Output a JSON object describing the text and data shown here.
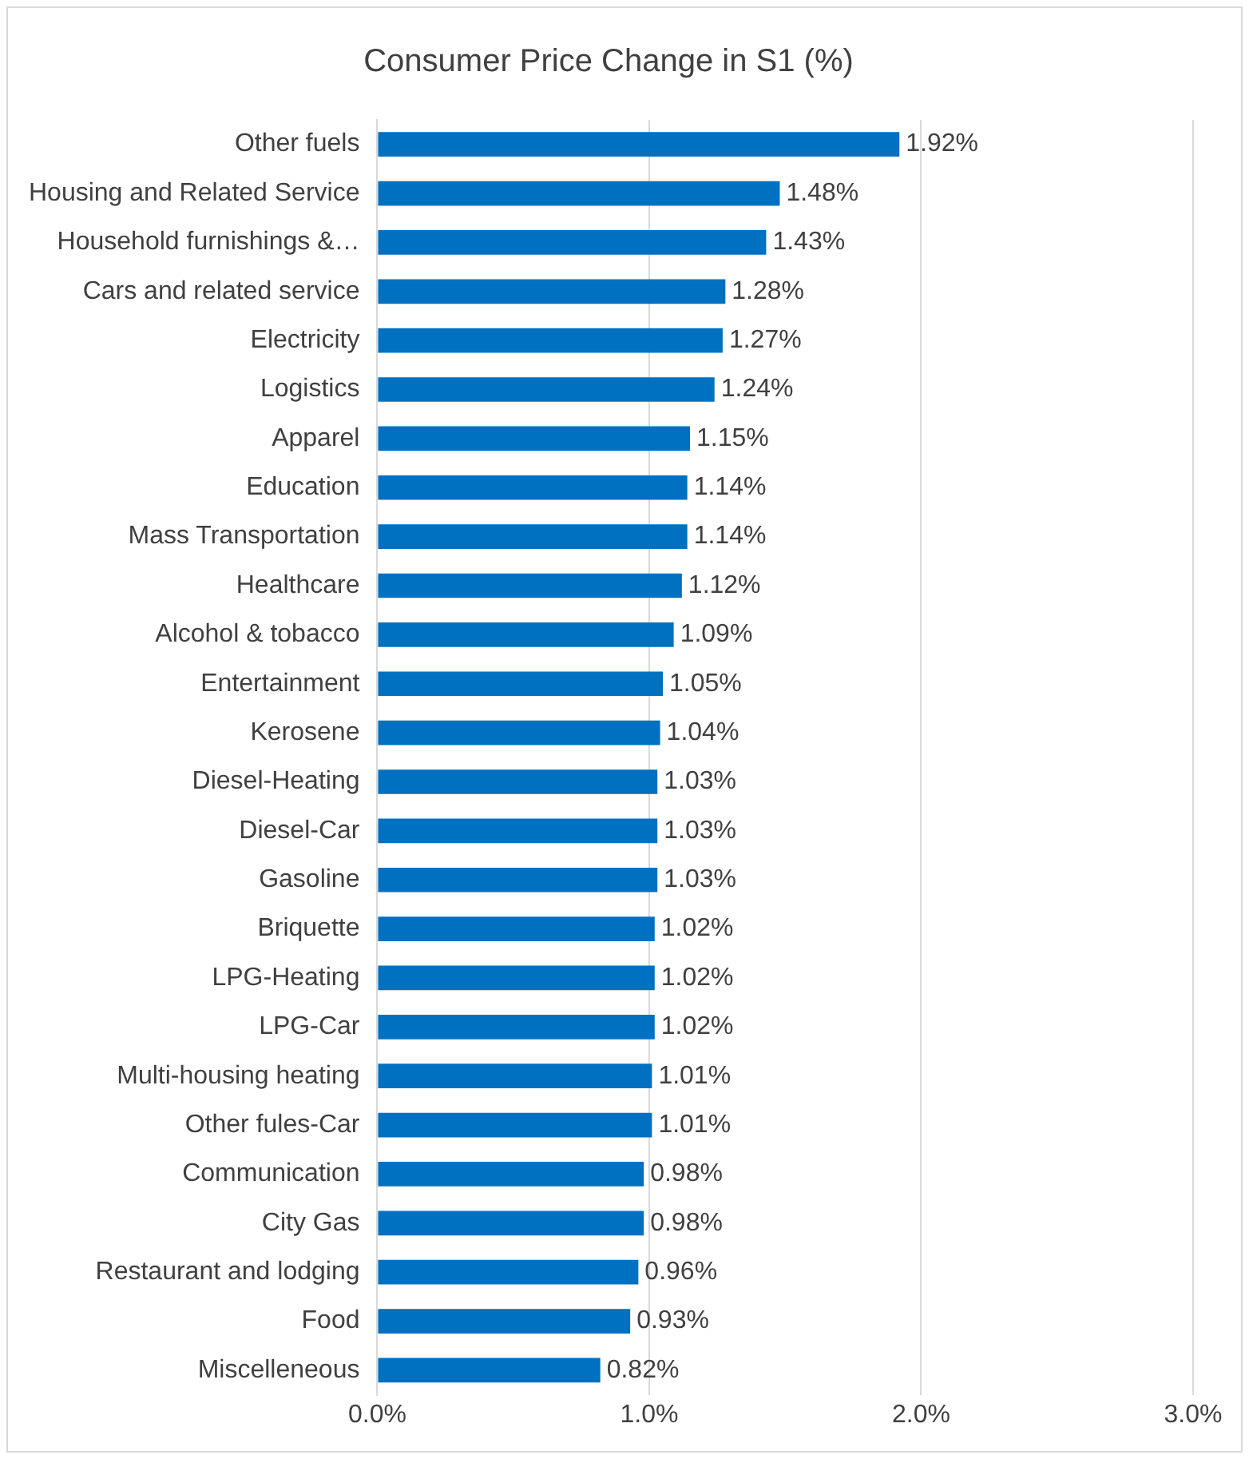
{
  "chart_data": {
    "type": "bar",
    "orientation": "horizontal",
    "title": "Consumer Price Change in S1 (%)",
    "categories": [
      "Other fuels",
      "Housing and Related Service",
      "Household furnishings &…",
      "Cars and related service",
      "Electricity",
      "Logistics",
      "Apparel",
      "Education",
      "Mass Transportation",
      "Healthcare",
      "Alcohol & tobacco",
      "Entertainment",
      "Kerosene",
      "Diesel-Heating",
      "Diesel-Car",
      "Gasoline",
      "Briquette",
      "LPG-Heating",
      "LPG-Car",
      "Multi-housing heating",
      "Other fules-Car",
      "Communication",
      "City Gas",
      "Restaurant and lodging",
      "Food",
      "Miscelleneous"
    ],
    "values": [
      1.92,
      1.48,
      1.43,
      1.28,
      1.27,
      1.24,
      1.15,
      1.14,
      1.14,
      1.12,
      1.09,
      1.05,
      1.04,
      1.03,
      1.03,
      1.03,
      1.02,
      1.02,
      1.02,
      1.01,
      1.01,
      0.98,
      0.98,
      0.96,
      0.93,
      0.82
    ],
    "value_labels": [
      "1.92%",
      "1.48%",
      "1.43%",
      "1.28%",
      "1.27%",
      "1.24%",
      "1.15%",
      "1.14%",
      "1.14%",
      "1.12%",
      "1.09%",
      "1.05%",
      "1.04%",
      "1.03%",
      "1.03%",
      "1.03%",
      "1.02%",
      "1.02%",
      "1.02%",
      "1.01%",
      "1.01%",
      "0.98%",
      "0.98%",
      "0.96%",
      "0.93%",
      "0.82%"
    ],
    "color": "#0070c0",
    "xlim": [
      0,
      3
    ],
    "xticks": [
      {
        "value": 0,
        "label": "0.0%"
      },
      {
        "value": 1,
        "label": "1.0%"
      },
      {
        "value": 2,
        "label": "2.0%"
      },
      {
        "value": 3,
        "label": "3.0%"
      }
    ],
    "grid": "x",
    "legend": false
  }
}
